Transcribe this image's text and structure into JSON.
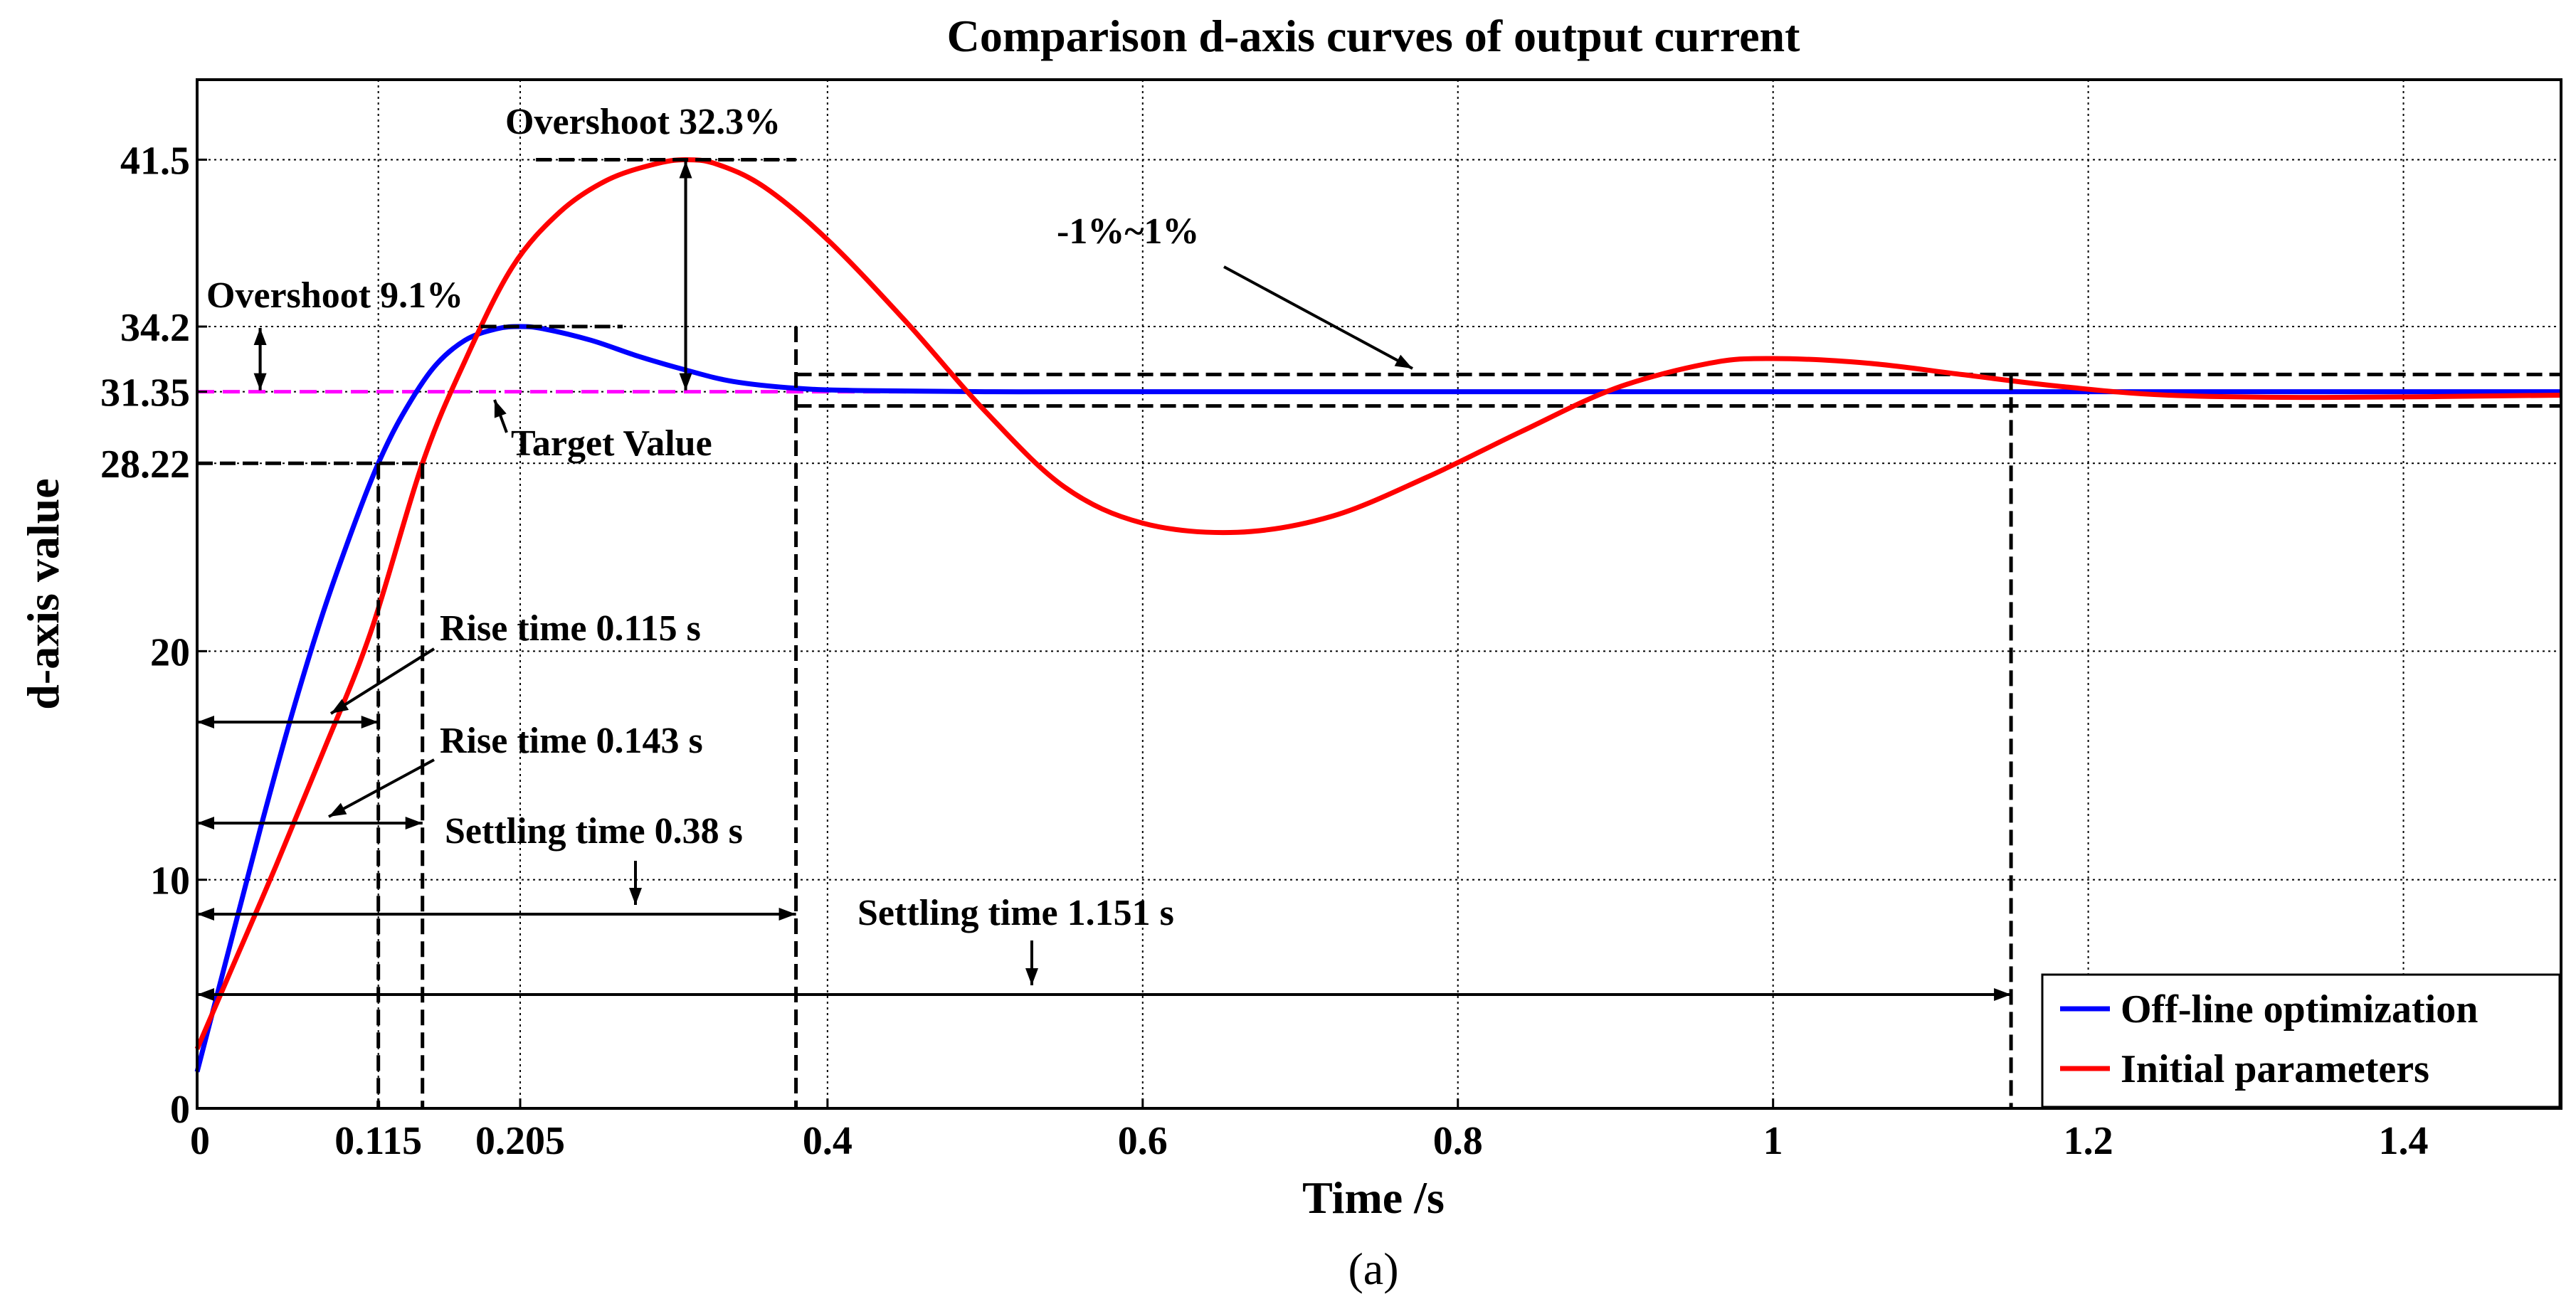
{
  "chart_data": {
    "type": "line",
    "title": "Comparison d-axis curves of output current",
    "xlabel": "Time /s",
    "ylabel": "d-axis value",
    "caption": "(a)",
    "xlim": [
      0,
      1.5
    ],
    "ylim": [
      0,
      45
    ],
    "x_ticks": [
      0,
      0.115,
      0.205,
      0.4,
      0.6,
      0.8,
      1,
      1.2,
      1.4
    ],
    "x_tick_labels": [
      "0",
      "0.115",
      "0.205",
      "0.4",
      "0.6",
      "0.8",
      "1",
      "1.2",
      "1.4"
    ],
    "y_ticks": [
      0,
      10,
      20,
      28.22,
      31.35,
      34.2,
      41.5
    ],
    "y_tick_labels": [
      "0",
      "10",
      "20",
      "28.22",
      "31.35",
      "34.2",
      "41.5"
    ],
    "grid": true,
    "legend_position": "bottom-right",
    "target_value": 31.35,
    "band": [
      31.04,
      31.67
    ],
    "series": [
      {
        "name": "Off-line optimization",
        "color": "#0000ff",
        "x": [
          0,
          0.02,
          0.04,
          0.06,
          0.08,
          0.1,
          0.115,
          0.13,
          0.15,
          0.17,
          0.19,
          0.205,
          0.22,
          0.25,
          0.28,
          0.31,
          0.34,
          0.38,
          0.42,
          0.5,
          0.6,
          0.8,
          1.0,
          1.2,
          1.5
        ],
        "y": [
          1.6,
          6.9,
          12.2,
          17.2,
          21.7,
          25.6,
          28.22,
          30.3,
          32.4,
          33.6,
          34.1,
          34.2,
          34.1,
          33.6,
          32.9,
          32.3,
          31.8,
          31.5,
          31.4,
          31.35,
          31.35,
          31.35,
          31.35,
          31.35,
          31.35
        ]
      },
      {
        "name": "Initial parameters",
        "color": "#ff0000",
        "x": [
          0,
          0.02,
          0.05,
          0.08,
          0.11,
          0.143,
          0.17,
          0.2,
          0.23,
          0.26,
          0.29,
          0.31,
          0.33,
          0.36,
          0.4,
          0.45,
          0.5,
          0.55,
          0.6,
          0.66,
          0.72,
          0.78,
          0.84,
          0.9,
          0.96,
          1.0,
          1.06,
          1.12,
          1.18,
          1.25,
          1.35,
          1.5
        ],
        "y": [
          2.6,
          5.8,
          10.6,
          15.6,
          20.8,
          28.22,
          32.7,
          36.8,
          39.2,
          40.6,
          41.3,
          41.5,
          41.3,
          40.3,
          38.0,
          34.4,
          30.5,
          27.2,
          25.6,
          25.2,
          25.9,
          27.6,
          29.6,
          31.5,
          32.6,
          32.8,
          32.6,
          32.1,
          31.6,
          31.2,
          31.1,
          31.2
        ]
      }
    ],
    "target_line": {
      "name": "Target Value",
      "color": "#ff00ff",
      "y": 31.35
    },
    "annotations": {
      "overshoot_red": "Overshoot 32.3%",
      "overshoot_blue": "Overshoot 9.1%",
      "band_label": "-1%~1%",
      "target_label": "Target Value",
      "rise_blue": "Rise time 0.115 s",
      "rise_red": "Rise time 0.143 s",
      "settle_blue": "Settling time 0.38 s",
      "settle_red": "Settling time 1.151 s"
    }
  }
}
